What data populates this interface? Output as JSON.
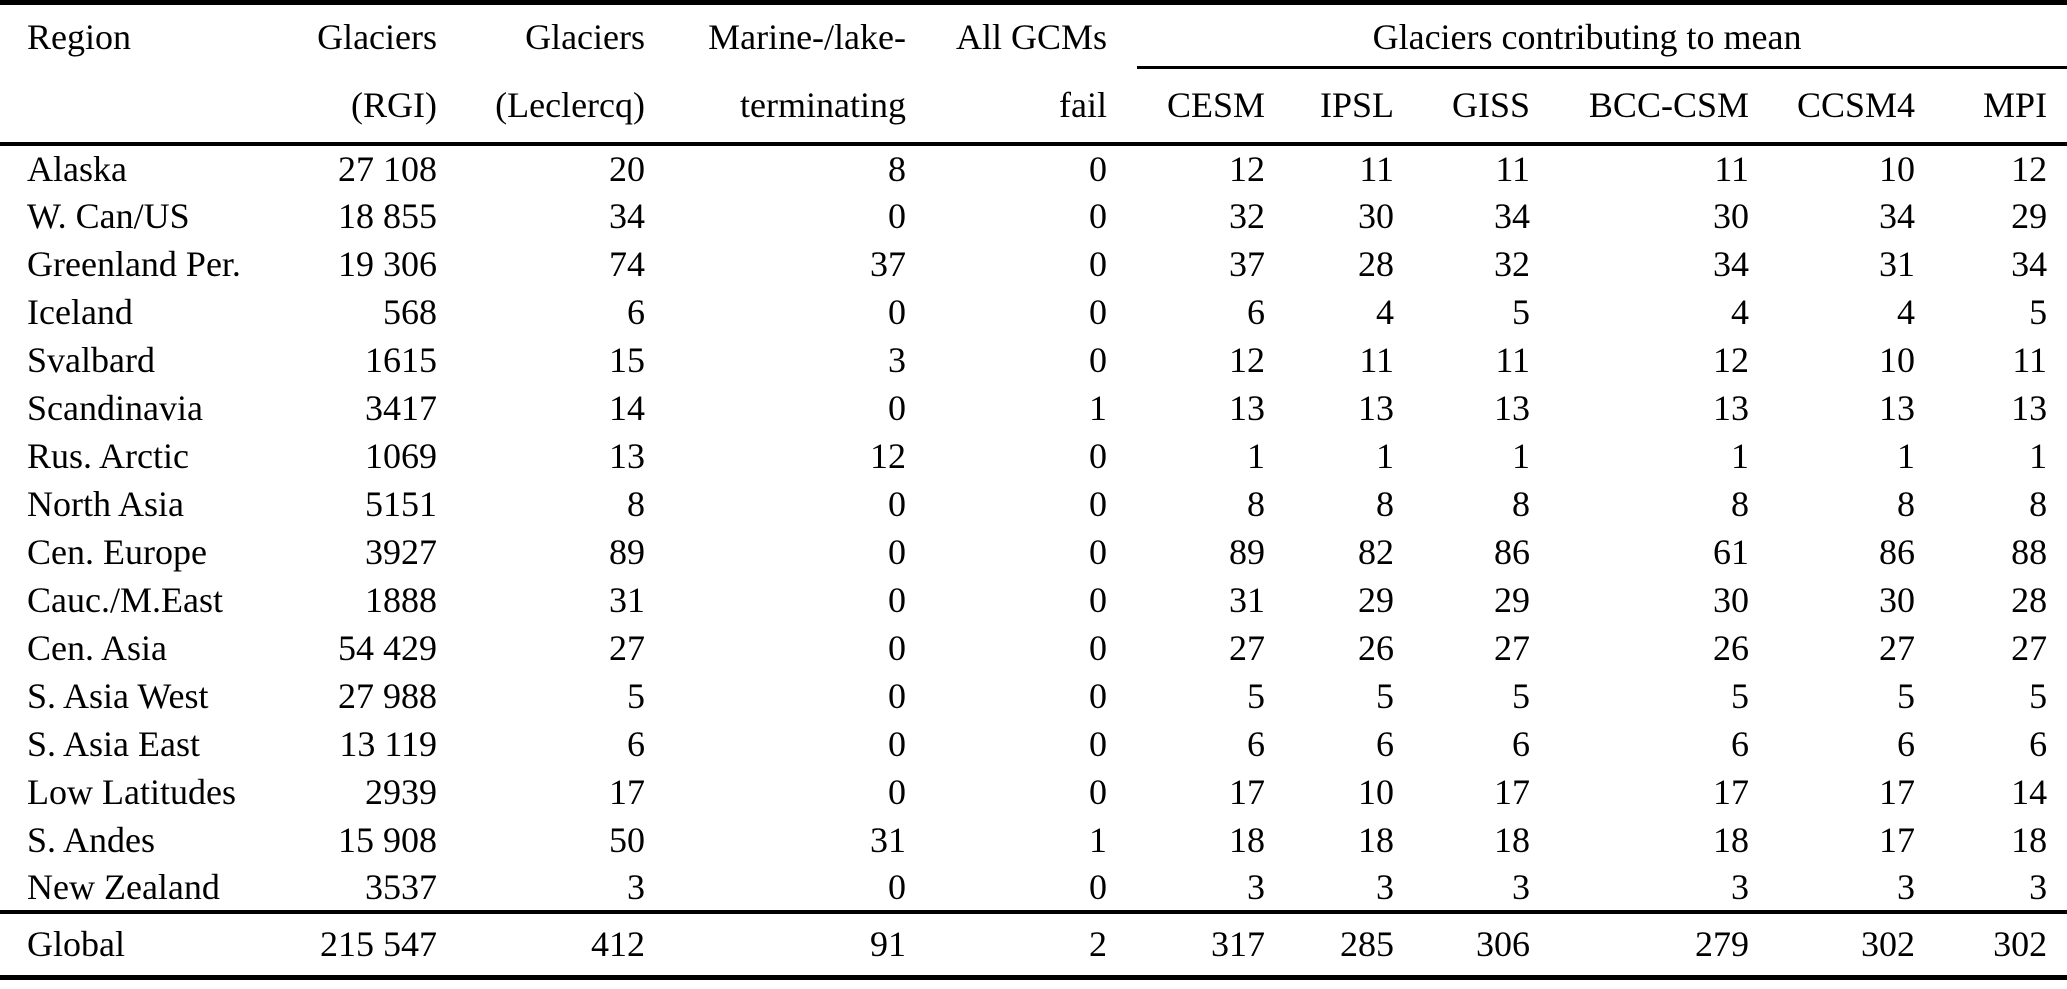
{
  "table": {
    "header": {
      "columns": [
        {
          "line1": "Region",
          "line2": ""
        },
        {
          "line1": "Glaciers",
          "line2": "(RGI)"
        },
        {
          "line1": "Glaciers",
          "line2": "(Leclercq)"
        },
        {
          "line1": "Marine-/lake-",
          "line2": "terminating"
        },
        {
          "line1": "All GCMs",
          "line2": "fail"
        }
      ],
      "group": {
        "label": "Glaciers contributing to mean",
        "models": [
          "CESM",
          "IPSL",
          "GISS",
          "BCC-CSM",
          "CCSM4",
          "MPI"
        ]
      }
    },
    "rows": [
      {
        "region": "Alaska",
        "values": [
          "27 108",
          "20",
          "8",
          "0",
          "12",
          "11",
          "11",
          "11",
          "10",
          "12"
        ]
      },
      {
        "region": "W. Can/US",
        "values": [
          "18 855",
          "34",
          "0",
          "0",
          "32",
          "30",
          "34",
          "30",
          "34",
          "29"
        ]
      },
      {
        "region": "Greenland Per.",
        "values": [
          "19 306",
          "74",
          "37",
          "0",
          "37",
          "28",
          "32",
          "34",
          "31",
          "34"
        ]
      },
      {
        "region": "Iceland",
        "values": [
          "568",
          "6",
          "0",
          "0",
          "6",
          "4",
          "5",
          "4",
          "4",
          "5"
        ]
      },
      {
        "region": "Svalbard",
        "values": [
          "1615",
          "15",
          "3",
          "0",
          "12",
          "11",
          "11",
          "12",
          "10",
          "11"
        ]
      },
      {
        "region": "Scandinavia",
        "values": [
          "3417",
          "14",
          "0",
          "1",
          "13",
          "13",
          "13",
          "13",
          "13",
          "13"
        ]
      },
      {
        "region": "Rus. Arctic",
        "values": [
          "1069",
          "13",
          "12",
          "0",
          "1",
          "1",
          "1",
          "1",
          "1",
          "1"
        ]
      },
      {
        "region": "North Asia",
        "values": [
          "5151",
          "8",
          "0",
          "0",
          "8",
          "8",
          "8",
          "8",
          "8",
          "8"
        ]
      },
      {
        "region": "Cen. Europe",
        "values": [
          "3927",
          "89",
          "0",
          "0",
          "89",
          "82",
          "86",
          "61",
          "86",
          "88"
        ]
      },
      {
        "region": "Cauc./M.East",
        "values": [
          "1888",
          "31",
          "0",
          "0",
          "31",
          "29",
          "29",
          "30",
          "30",
          "28"
        ]
      },
      {
        "region": "Cen. Asia",
        "values": [
          "54 429",
          "27",
          "0",
          "0",
          "27",
          "26",
          "27",
          "26",
          "27",
          "27"
        ]
      },
      {
        "region": "S. Asia West",
        "values": [
          "27 988",
          "5",
          "0",
          "0",
          "5",
          "5",
          "5",
          "5",
          "5",
          "5"
        ]
      },
      {
        "region": "S. Asia East",
        "values": [
          "13 119",
          "6",
          "0",
          "0",
          "6",
          "6",
          "6",
          "6",
          "6",
          "6"
        ]
      },
      {
        "region": "Low Latitudes",
        "values": [
          "2939",
          "17",
          "0",
          "0",
          "17",
          "10",
          "17",
          "17",
          "17",
          "14"
        ]
      },
      {
        "region": "S. Andes",
        "values": [
          "15 908",
          "50",
          "31",
          "1",
          "18",
          "18",
          "18",
          "18",
          "17",
          "18"
        ]
      },
      {
        "region": "New Zealand",
        "values": [
          "3537",
          "3",
          "0",
          "0",
          "3",
          "3",
          "3",
          "3",
          "3",
          "3"
        ]
      }
    ],
    "global": {
      "region": "Global",
      "values": [
        "215 547",
        "412",
        "91",
        "2",
        "317",
        "285",
        "306",
        "279",
        "302",
        "302"
      ]
    }
  }
}
